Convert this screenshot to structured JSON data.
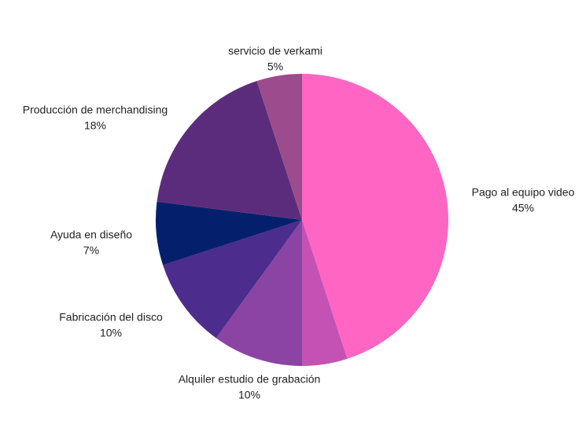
{
  "chart_data": {
    "type": "pie",
    "categories": [
      "Pago al equipo video",
      null,
      "Alquiler estudio de grabación",
      "Fabricación del disco",
      "Ayuda en diseño",
      "Producción de merchandising",
      "servicio de verkami"
    ],
    "values": [
      45,
      5,
      10,
      10,
      7,
      18,
      5
    ],
    "value_labels": [
      "45%",
      null,
      "10%",
      "10%",
      "7%",
      "18%",
      "5%"
    ],
    "colors": [
      "#ff66c4",
      "#c452b4",
      "#8c44a4",
      "#4c2c8c",
      "#04206c",
      "#5c2c7c",
      "#9c4c8c"
    ]
  }
}
